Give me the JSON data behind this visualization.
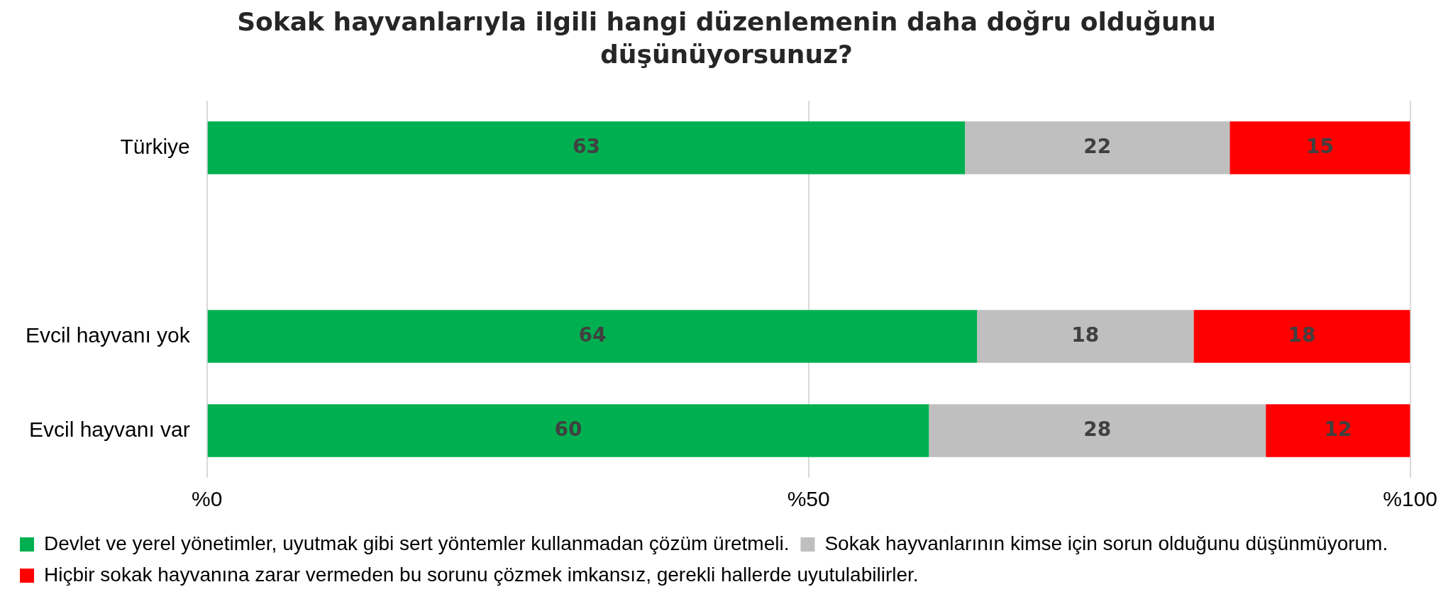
{
  "chart_data": {
    "type": "bar",
    "orientation": "horizontal",
    "stacked": true,
    "title": "Sokak hayvanlarıyla ilgili hangi düzenlemenin daha doğru olduğunu düşünüyorsunuz?",
    "categories": [
      "Türkiye",
      null,
      "Evcil hayvanı yok",
      "Evcil hayvanı var"
    ],
    "series": [
      {
        "name": "Devlet ve yerel yönetimler, uyutmak gibi sert yöntemler kullanmadan çözüm üretmeli.",
        "color": "#00b050",
        "values": [
          63,
          null,
          64,
          60
        ]
      },
      {
        "name": "Sokak hayvanlarının kimse için sorun olduğunu düşünmüyorum.",
        "color": "#bfbfbf",
        "values": [
          22,
          null,
          18,
          28
        ]
      },
      {
        "name": "Hiçbir sokak hayvanına zarar vermeden bu sorunu çözmek imkansız, gerekli hallerde uyutulabilirler.",
        "color": "#ff0000",
        "values": [
          15,
          null,
          18,
          12
        ]
      }
    ],
    "xlim": [
      0,
      100
    ],
    "xticks": [
      {
        "value": 0,
        "label": "%0"
      },
      {
        "value": 50,
        "label": "%50"
      },
      {
        "value": 100,
        "label": "%100"
      }
    ],
    "grid": "x",
    "legend": "bottom",
    "data_labels": true
  }
}
